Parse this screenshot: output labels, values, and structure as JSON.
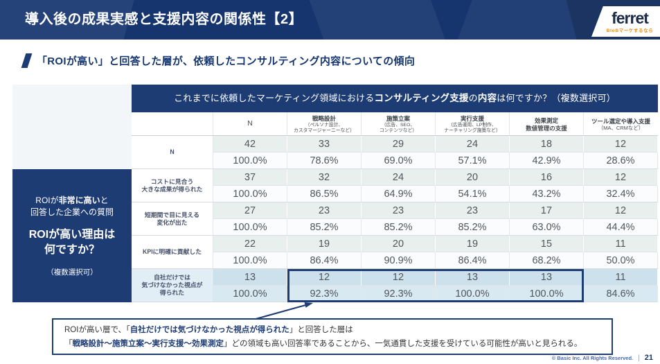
{
  "header": {
    "title": "導入後の成果実感と支援内容の関係性【2】",
    "logo_text": "ferret",
    "logo_tagline": "BtoBマーケするなら"
  },
  "subtitle": "「ROIが高い」と回答した層が、依頼したコンサルティング内容についての傾向",
  "table": {
    "question": {
      "pre": "これまでに依頼したマーケティング領域における",
      "bold1": "コンサルティング支援",
      "mid": "の",
      "bold2": "内容",
      "post": "は何ですか？（複数選択可）"
    },
    "columns": [
      {
        "main": "N",
        "sub": ""
      },
      {
        "main": "戦略設計",
        "sub": "（ペルソナ設計、\nカスタマージャーニーなど）"
      },
      {
        "main": "施策立案",
        "sub": "（広告、SEO、\nコンテンツなど）"
      },
      {
        "main": "実行支援",
        "sub": "（広告運用、LP制作、\nナーチャリング施策など）"
      },
      {
        "main": "効果測定",
        "sub": "数値管理の支援"
      },
      {
        "main": "ツール選定や導入支援",
        "sub": "（MA、CRMなど）"
      }
    ],
    "sidebar": {
      "q1a": "ROIが",
      "q1b": "非常に高い",
      "q1c": "と",
      "q2": "回答した企業への質問",
      "q3a": "ROIが",
      "q3b": "高い理由",
      "q3c": "は",
      "q4": "何ですか？",
      "q5": "（複数選択可）"
    },
    "rows": [
      {
        "label": "N",
        "counts": [
          "42",
          "33",
          "29",
          "24",
          "18",
          "12"
        ],
        "pcts": [
          "100.0%",
          "78.6%",
          "69.0%",
          "57.1%",
          "42.9%",
          "28.6%"
        ],
        "highlight": false
      },
      {
        "label": "コストに見合う\n大きな成果が得られた",
        "counts": [
          "37",
          "32",
          "24",
          "20",
          "16",
          "12"
        ],
        "pcts": [
          "100.0%",
          "86.5%",
          "64.9%",
          "54.1%",
          "43.2%",
          "32.4%"
        ],
        "highlight": false
      },
      {
        "label": "短期間で目に見える\n変化が出た",
        "counts": [
          "27",
          "23",
          "23",
          "23",
          "17",
          "12"
        ],
        "pcts": [
          "100.0%",
          "85.2%",
          "85.2%",
          "85.2%",
          "63.0%",
          "44.4%"
        ],
        "highlight": false
      },
      {
        "label": "KPIに明確に貢献した",
        "counts": [
          "22",
          "19",
          "20",
          "19",
          "15",
          "11"
        ],
        "pcts": [
          "100.0%",
          "86.4%",
          "90.9%",
          "86.4%",
          "68.2%",
          "50.0%"
        ],
        "highlight": false
      },
      {
        "label": "自社だけでは\n気づけなかった視点が\n得られた",
        "counts": [
          "13",
          "12",
          "12",
          "13",
          "13",
          "11"
        ],
        "pcts": [
          "100.0%",
          "92.3%",
          "92.3%",
          "100.0%",
          "100.0%",
          "84.6%"
        ],
        "highlight": true
      }
    ]
  },
  "note": {
    "l1a": "ROIが高い層で、「",
    "l1b": "自社だけでは気づけなかった視点が得られた",
    "l1c": "」と回答した層は",
    "l2a": "「",
    "l2b": "戦略設計～施策立案～実行支援～効果測定",
    "l2c": "」どの領域も高い回答率であることから、一気通貫した支援を受けている可能性が高いと見られる。"
  },
  "footer": {
    "copyright": "© Basic Inc. All Rights Reserved.",
    "separator": "|",
    "page": "21"
  },
  "colors": {
    "brand_navy": "#1e3c74",
    "topbar_navy": "#16356f",
    "logo_orange": "#f08c00",
    "row_tint": "#e9efec",
    "highlight_row_tint": "#cce1ec",
    "highlight_border": "#1e3c74",
    "corner_gray": "#f3f6f8"
  }
}
